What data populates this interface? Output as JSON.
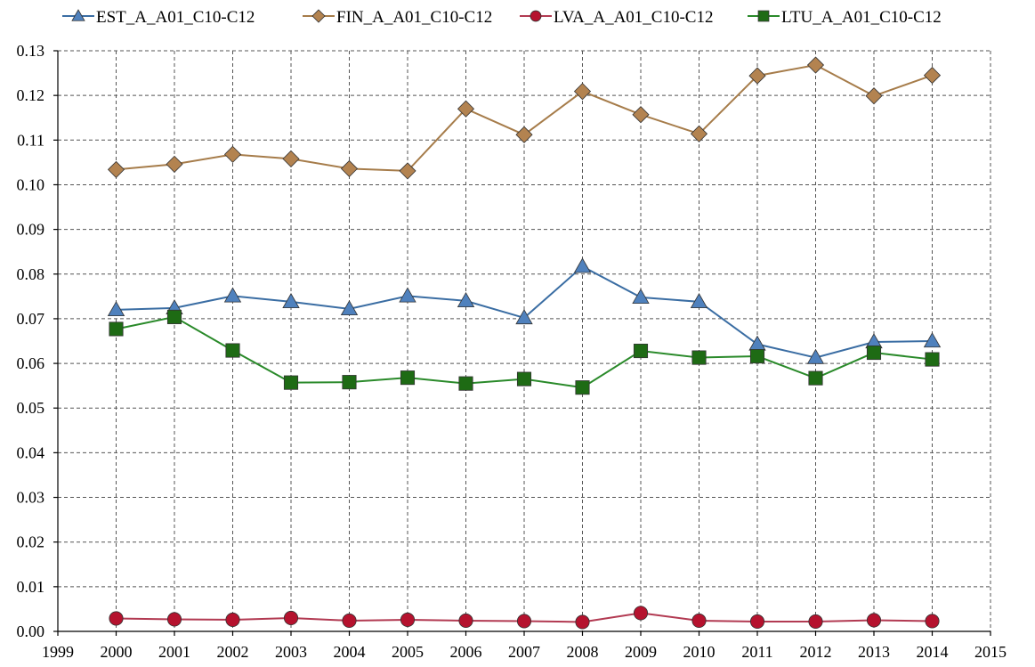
{
  "chart_data": {
    "type": "line",
    "title": "",
    "xlabel": "",
    "ylabel": "",
    "xlim": [
      1999,
      2015
    ],
    "ylim": [
      0.0,
      0.13
    ],
    "x_ticks": [
      "1999",
      "2000",
      "2001",
      "2002",
      "2003",
      "2004",
      "2005",
      "2006",
      "2007",
      "2008",
      "2009",
      "2010",
      "2011",
      "2012",
      "2013",
      "2014",
      "2015"
    ],
    "y_ticks": [
      "0.00",
      "0.01",
      "0.02",
      "0.03",
      "0.04",
      "0.05",
      "0.06",
      "0.07",
      "0.08",
      "0.09",
      "0.10",
      "0.11",
      "0.12",
      "0.13"
    ],
    "grid": true,
    "legend_position": "top",
    "x": [
      2000,
      2001,
      2002,
      2003,
      2004,
      2005,
      2006,
      2007,
      2008,
      2009,
      2010,
      2011,
      2012,
      2013,
      2014
    ],
    "series": [
      {
        "name": "EST_A_A01_C10-C12",
        "color": "#3a6da3",
        "marker": "triangle",
        "marker_fill": "#4f81bd",
        "values": [
          0.072,
          0.0724,
          0.0751,
          0.0738,
          0.0722,
          0.0751,
          0.074,
          0.0702,
          0.0817,
          0.0748,
          0.0738,
          0.0643,
          0.0613,
          0.0648,
          0.065
        ]
      },
      {
        "name": "FIN_A_A01_C10-C12",
        "color": "#a67c4a",
        "marker": "diamond",
        "marker_fill": "#b38350",
        "values": [
          0.1034,
          0.1046,
          0.1068,
          0.1058,
          0.1036,
          0.1031,
          0.117,
          0.1112,
          0.1209,
          0.1157,
          0.1114,
          0.1244,
          0.1268,
          0.1199,
          0.1245
        ]
      },
      {
        "name": "LVA_A_A01_C10-C12",
        "color": "#b23a52",
        "marker": "circle",
        "marker_fill": "#b5122e",
        "values": [
          0.0029,
          0.0027,
          0.0026,
          0.003,
          0.0024,
          0.0026,
          0.0024,
          0.0023,
          0.0021,
          0.0041,
          0.0024,
          0.0022,
          0.0022,
          0.0025,
          0.0023
        ]
      },
      {
        "name": "LTU_A_A01_C10-C12",
        "color": "#2a8a2a",
        "marker": "square",
        "marker_fill": "#1e6b14",
        "values": [
          0.0677,
          0.0704,
          0.0629,
          0.0557,
          0.0558,
          0.0568,
          0.0555,
          0.0565,
          0.0546,
          0.0628,
          0.0613,
          0.0616,
          0.0567,
          0.0624,
          0.0609
        ]
      }
    ]
  }
}
